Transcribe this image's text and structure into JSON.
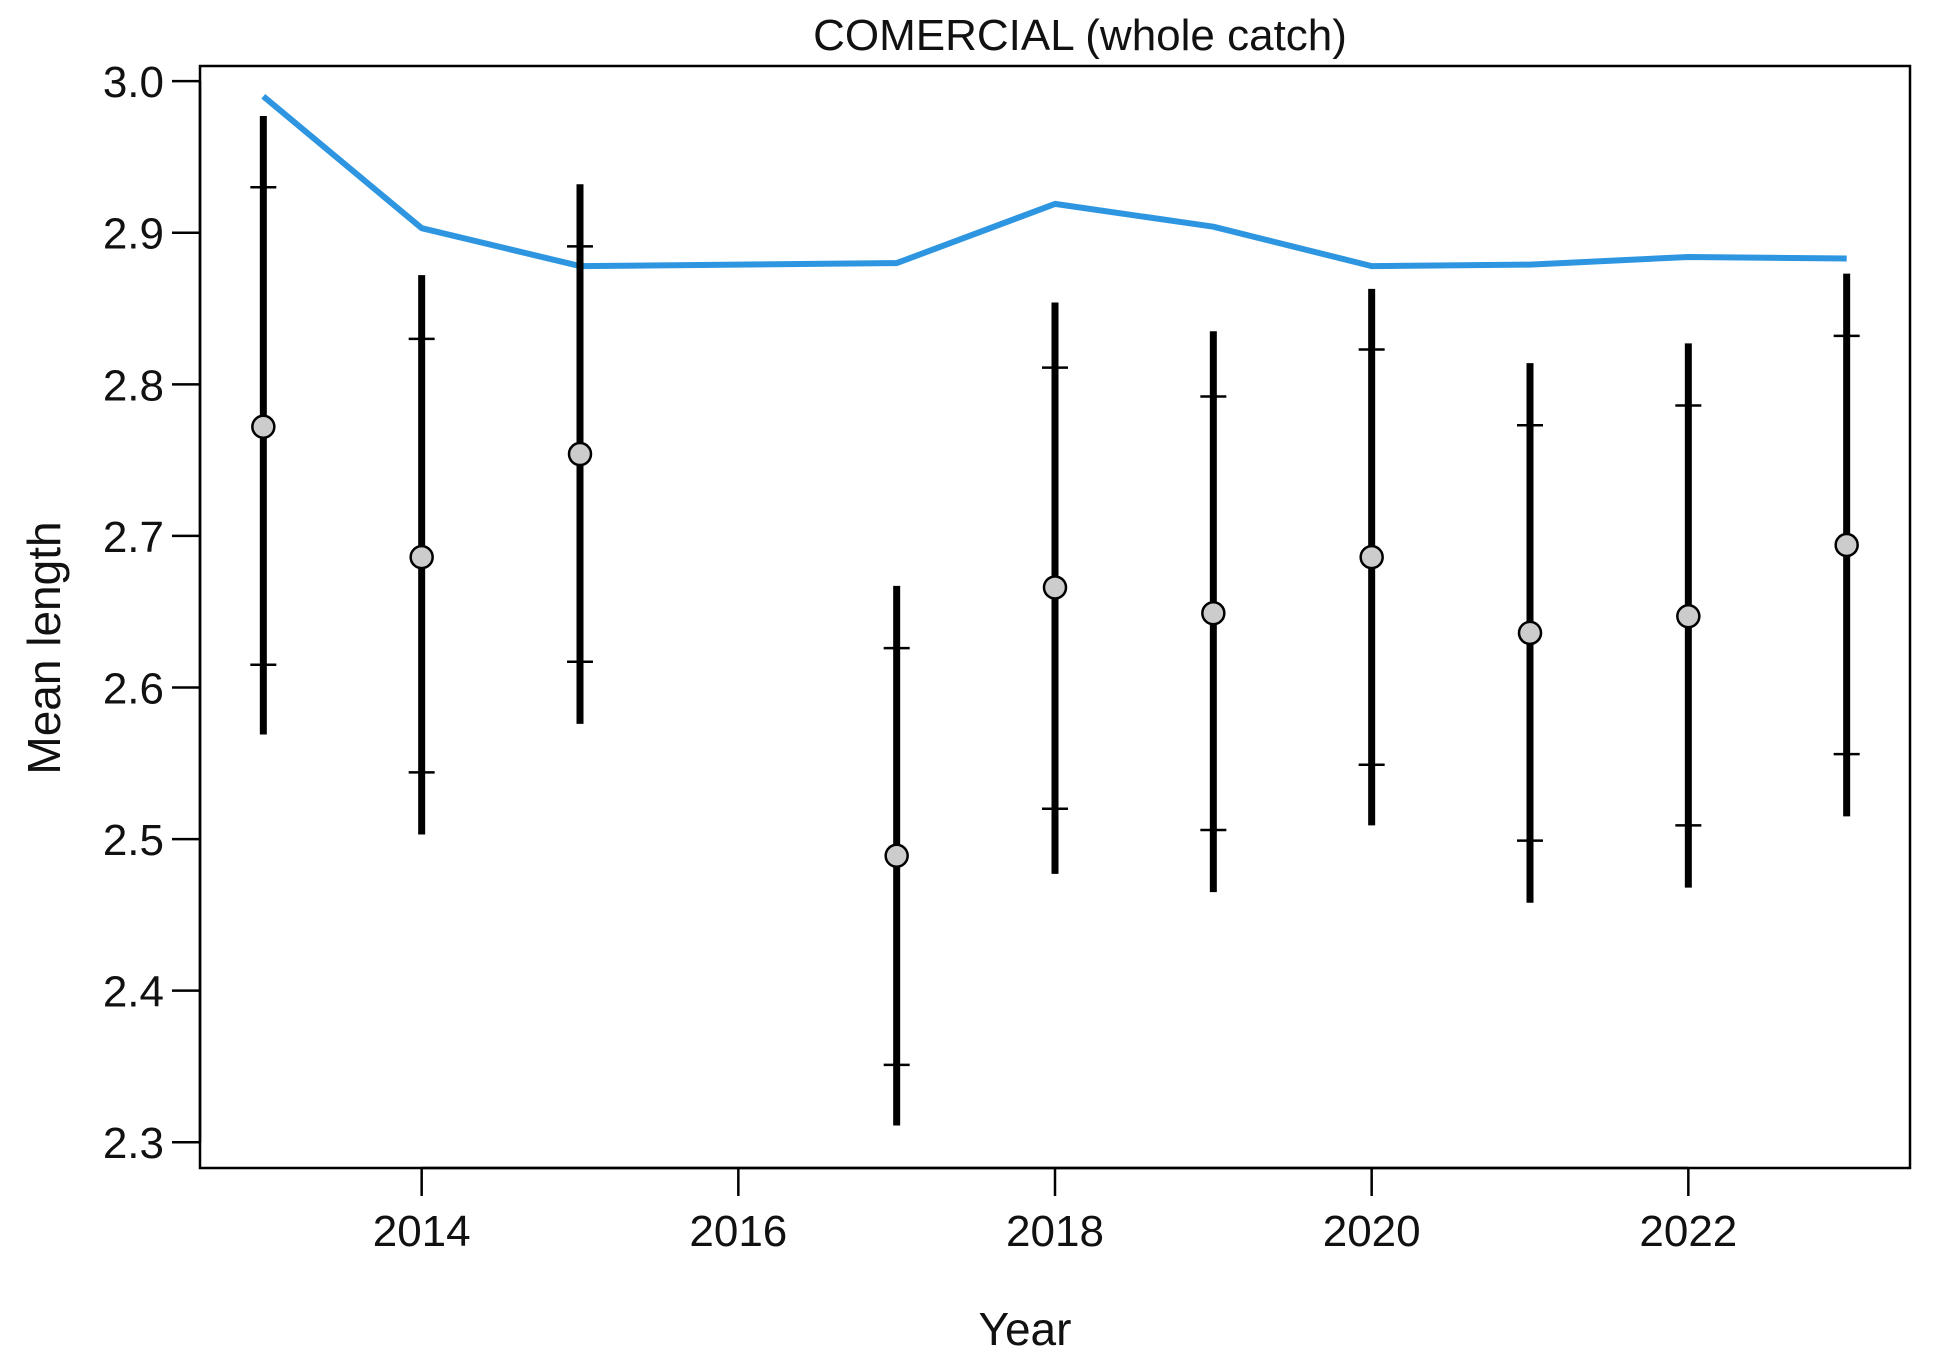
{
  "chart_data": {
    "type": "line",
    "title": "COMERCIAL (whole catch)",
    "xlabel": "Year",
    "ylabel": "Mean length",
    "xlim": [
      2012.6,
      2023.4
    ],
    "ylim": [
      2.283,
      3.01
    ],
    "x_ticks": [
      2014,
      2016,
      2018,
      2020,
      2022
    ],
    "x_tick_labels": [
      "2014",
      "2016",
      "2018",
      "2020",
      "2022"
    ],
    "y_ticks": [
      2.3,
      2.4,
      2.5,
      2.6,
      2.7,
      2.8,
      2.9,
      3.0
    ],
    "y_tick_labels": [
      "2.3",
      "2.4",
      "2.5",
      "2.6",
      "2.7",
      "2.8",
      "2.9",
      "3.0"
    ],
    "grid": false,
    "colors": {
      "expected_line": "#2e96e0",
      "observed_point": "#cccccc",
      "error_bar": "#000000"
    },
    "observed": [
      {
        "x": 2013,
        "y": 2.772,
        "outer": [
          2.569,
          2.977
        ],
        "inner": [
          2.615,
          2.93
        ]
      },
      {
        "x": 2014,
        "y": 2.686,
        "outer": [
          2.503,
          2.872
        ],
        "inner": [
          2.544,
          2.83
        ]
      },
      {
        "x": 2015,
        "y": 2.754,
        "outer": [
          2.576,
          2.932
        ],
        "inner": [
          2.617,
          2.891
        ]
      },
      {
        "x": 2017,
        "y": 2.489,
        "outer": [
          2.311,
          2.667
        ],
        "inner": [
          2.351,
          2.626
        ]
      },
      {
        "x": 2018,
        "y": 2.666,
        "outer": [
          2.477,
          2.854
        ],
        "inner": [
          2.52,
          2.811
        ]
      },
      {
        "x": 2019,
        "y": 2.649,
        "outer": [
          2.465,
          2.835
        ],
        "inner": [
          2.506,
          2.792
        ]
      },
      {
        "x": 2020,
        "y": 2.686,
        "outer": [
          2.509,
          2.863
        ],
        "inner": [
          2.549,
          2.823
        ]
      },
      {
        "x": 2021,
        "y": 2.636,
        "outer": [
          2.458,
          2.814
        ],
        "inner": [
          2.499,
          2.773
        ]
      },
      {
        "x": 2022,
        "y": 2.647,
        "outer": [
          2.468,
          2.827
        ],
        "inner": [
          2.509,
          2.786
        ]
      },
      {
        "x": 2023,
        "y": 2.694,
        "outer": [
          2.515,
          2.873
        ],
        "inner": [
          2.556,
          2.832
        ]
      }
    ],
    "expected": {
      "x": [
        2013,
        2014,
        2015,
        2017,
        2018,
        2019,
        2020,
        2021,
        2022,
        2023
      ],
      "y": [
        2.99,
        2.903,
        2.878,
        2.88,
        2.919,
        2.904,
        2.878,
        2.879,
        2.884,
        2.883
      ]
    }
  }
}
